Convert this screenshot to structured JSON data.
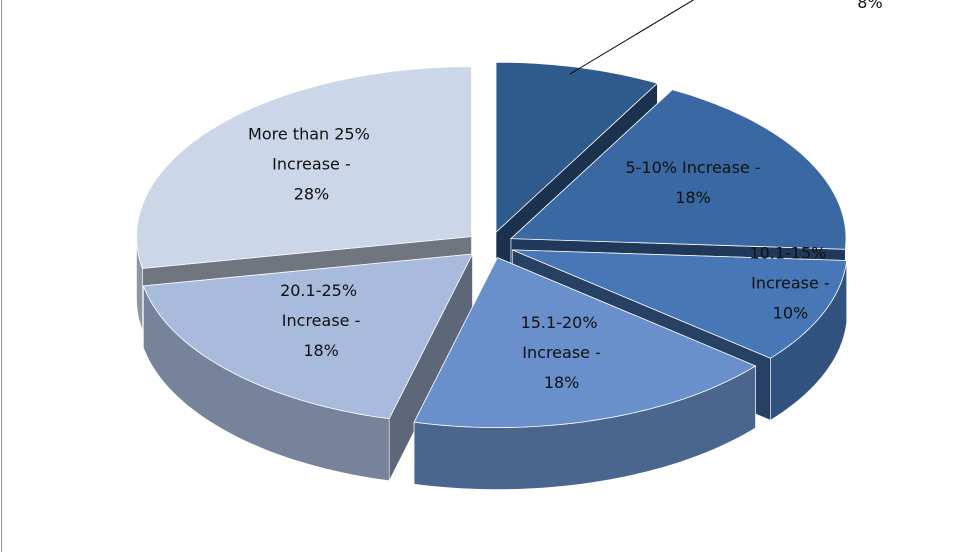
{
  "chart_data": {
    "type": "pie3d",
    "categories": [
      null,
      "5-10% Increase -",
      "10.1-15% Increase -",
      "15.1-20% Increase -",
      "20.1-25% Increase -",
      "More than 25% Increase -"
    ],
    "values": [
      8,
      18,
      10,
      18,
      18,
      28
    ],
    "value_labels": [
      "8%",
      "18%",
      "10%",
      "18%",
      "18%",
      "28%"
    ],
    "colors": [
      "#2f5a8c",
      "#3a68a3",
      "#4777b6",
      "#6a90cb",
      "#a9bbdc",
      "#ccd6e9"
    ]
  }
}
